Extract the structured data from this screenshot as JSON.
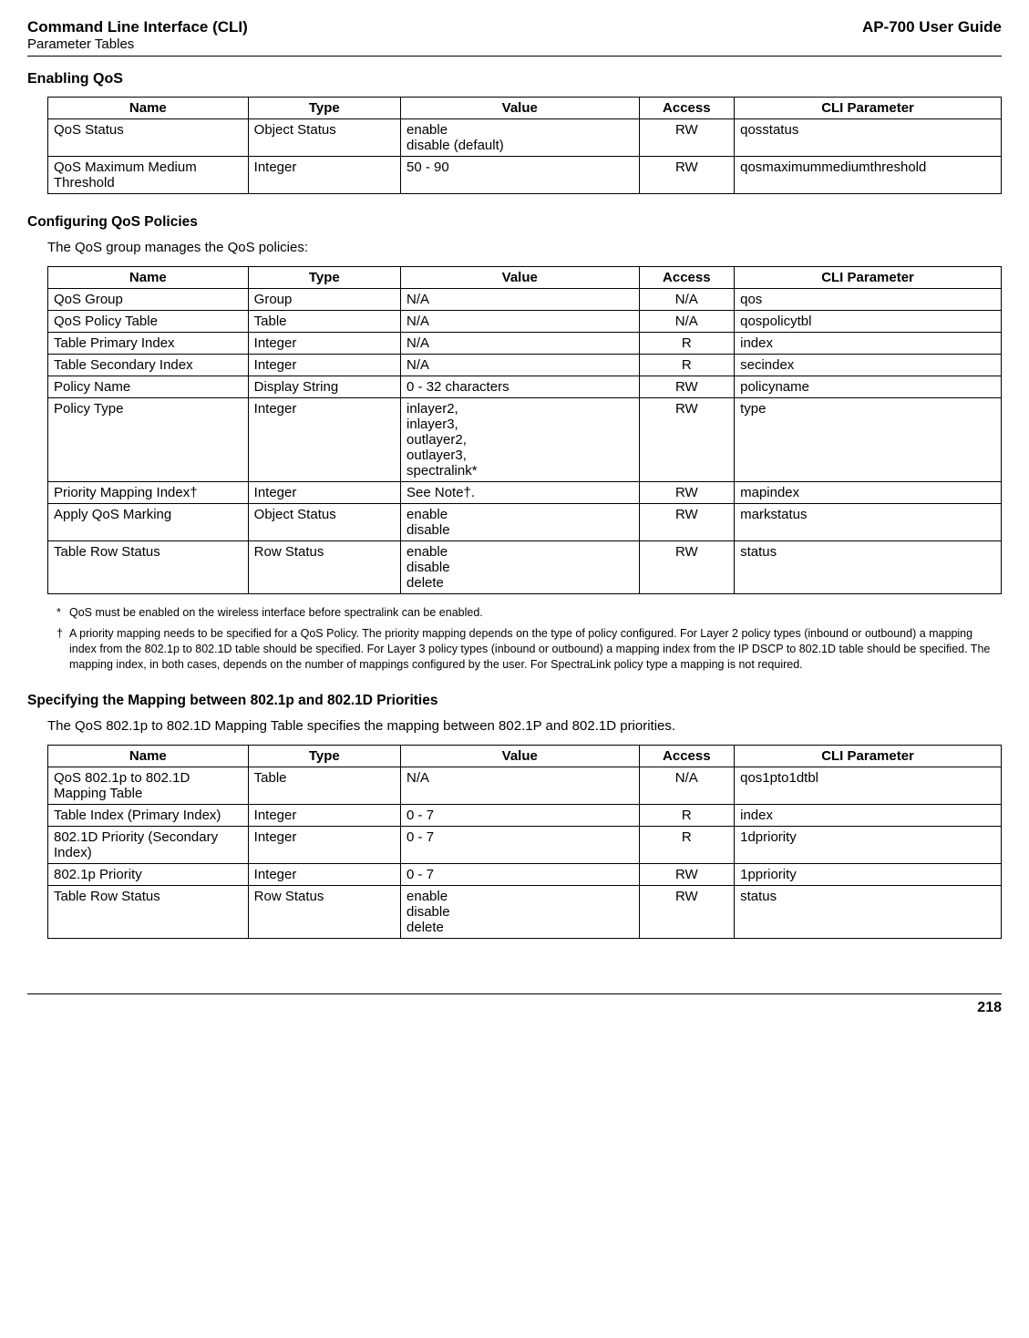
{
  "header": {
    "left_line1": "Command Line Interface (CLI)",
    "left_line2": "Parameter Tables",
    "right": "AP-700 User Guide"
  },
  "sections": {
    "enabling_qos": {
      "title": "Enabling QoS",
      "columns": [
        "Name",
        "Type",
        "Value",
        "Access",
        "CLI Parameter"
      ],
      "rows": [
        [
          "QoS Status",
          "Object Status",
          "enable\ndisable (default)",
          "RW",
          "qosstatus"
        ],
        [
          "QoS Maximum Medium Threshold",
          "Integer",
          "50 - 90",
          "RW",
          "qosmaximummediumthreshold"
        ]
      ]
    },
    "policies": {
      "title": "Configuring QoS Policies",
      "intro": "The QoS group manages the QoS policies:",
      "columns": [
        "Name",
        "Type",
        "Value",
        "Access",
        "CLI Parameter"
      ],
      "rows": [
        [
          "QoS Group",
          "Group",
          "N/A",
          "N/A",
          "qos"
        ],
        [
          "QoS Policy Table",
          "Table",
          "N/A",
          "N/A",
          "qospolicytbl"
        ],
        [
          "Table Primary Index",
          "Integer",
          "N/A",
          "R",
          "index"
        ],
        [
          "Table Secondary Index",
          "Integer",
          "N/A",
          "R",
          "secindex"
        ],
        [
          "Policy Name",
          "Display String",
          "0 - 32 characters",
          "RW",
          "policyname"
        ],
        [
          "Policy Type",
          "Integer",
          "inlayer2,\ninlayer3,\noutlayer2,\noutlayer3,\nspectralink*",
          "RW",
          "type"
        ],
        [
          "Priority Mapping Index†",
          "Integer",
          "See Note†.",
          "RW",
          "mapindex"
        ],
        [
          "Apply QoS Marking",
          "Object Status",
          "enable\ndisable",
          "RW",
          "markstatus"
        ],
        [
          "Table Row Status",
          "Row Status",
          "enable\ndisable\ndelete",
          "RW",
          "status"
        ]
      ],
      "footnotes": [
        {
          "mark": "*",
          "text": "QoS must be enabled on the wireless interface before spectralink can be enabled."
        },
        {
          "mark": "†",
          "text": "A priority mapping needs to be specified for a QoS Policy. The priority mapping depends on the type of policy configured. For Layer 2 policy types (inbound or outbound) a mapping index from the 802.1p to 802.1D table should be specified. For Layer 3 policy types (inbound or outbound) a mapping index from the IP DSCP to 802.1D table should be specified. The mapping index, in both cases, depends on the number of mappings configured by the user. For SpectraLink policy type a mapping is not required."
        }
      ]
    },
    "mapping": {
      "title": "Specifying the Mapping between 802.1p and 802.1D Priorities",
      "intro": "The QoS 802.1p to 802.1D Mapping Table specifies the mapping between 802.1P and 802.1D priorities.",
      "columns": [
        "Name",
        "Type",
        "Value",
        "Access",
        "CLI Parameter"
      ],
      "rows": [
        [
          "QoS 802.1p to 802.1D Mapping Table",
          "Table",
          "N/A",
          "N/A",
          "qos1pto1dtbl"
        ],
        [
          "Table Index (Primary Index)",
          "Integer",
          "0 - 7",
          "R",
          "index"
        ],
        [
          "802.1D Priority (Secondary Index)",
          "Integer",
          "0 - 7",
          "R",
          "1dpriority"
        ],
        [
          "802.1p Priority",
          "Integer",
          "0 - 7",
          "RW",
          "1ppriority"
        ],
        [
          "Table Row Status",
          "Row Status",
          "enable\ndisable\ndelete",
          "RW",
          "status"
        ]
      ]
    }
  },
  "page_number": "218"
}
